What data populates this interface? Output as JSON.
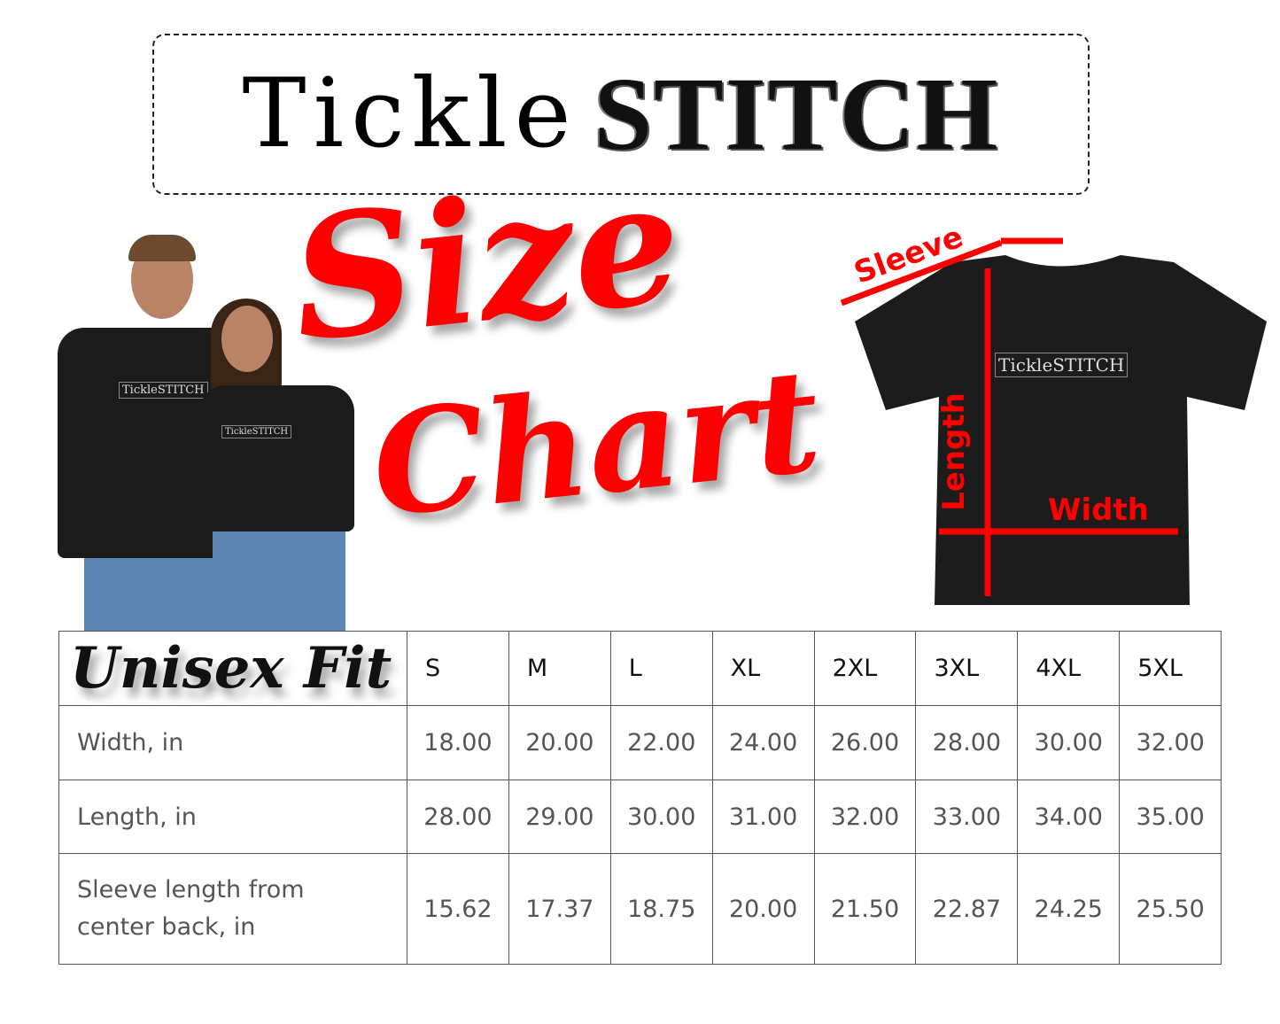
{
  "logo": {
    "part1": "Tickle",
    "part2": "STITCH"
  },
  "title": {
    "line1": "Size",
    "line2": "Chart"
  },
  "fit_label": "Unisex Fit",
  "shirt_print": "TickleSTITCH",
  "diagram": {
    "sleeve": "Sleeve",
    "length": "Length",
    "width": "Width",
    "accent_color": "#ff0000"
  },
  "table": {
    "sizes": [
      "S",
      "M",
      "L",
      "XL",
      "2XL",
      "3XL",
      "4XL",
      "5XL"
    ],
    "rows": [
      {
        "label": "Width, in",
        "values": [
          "18.00",
          "20.00",
          "22.00",
          "24.00",
          "26.00",
          "28.00",
          "30.00",
          "32.00"
        ]
      },
      {
        "label": "Length, in",
        "values": [
          "28.00",
          "29.00",
          "30.00",
          "31.00",
          "32.00",
          "33.00",
          "34.00",
          "35.00"
        ]
      },
      {
        "label_line1": "Sleeve length from",
        "label_line2": "center back, in",
        "values": [
          "15.62",
          "17.37",
          "18.75",
          "20.00",
          "21.50",
          "22.87",
          "24.25",
          "25.50"
        ]
      }
    ]
  }
}
